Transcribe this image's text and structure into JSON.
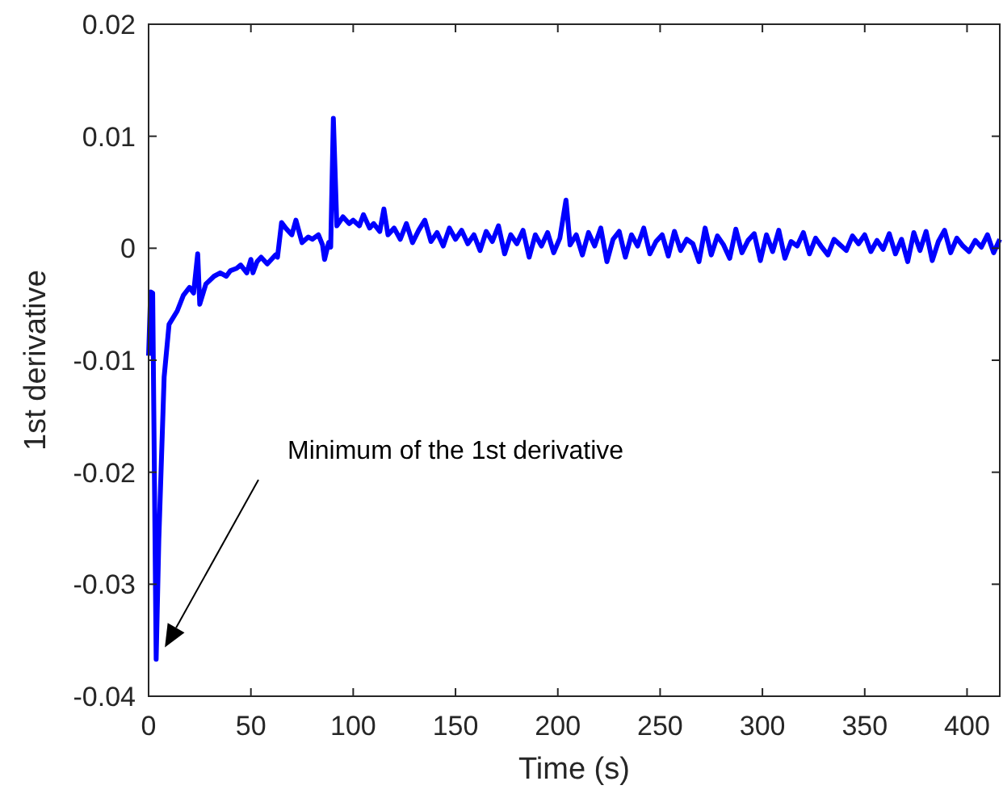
{
  "chart_data": {
    "type": "line",
    "xlabel": "Time (s)",
    "ylabel": "1st derivative",
    "xlim": [
      0,
      416
    ],
    "ylim": [
      -0.04,
      0.02
    ],
    "xticks": [
      0,
      50,
      100,
      150,
      200,
      250,
      300,
      350,
      400
    ],
    "yticks": [
      -0.04,
      -0.03,
      -0.02,
      -0.01,
      0,
      0.01,
      0.02
    ],
    "grid": false,
    "line_style": "solid",
    "annotations": [
      "Minimum of the 1st derivative"
    ],
    "series": [
      {
        "color": "#0000ff",
        "x": [
          0,
          1,
          2,
          3.7,
          5,
          7.6,
          10,
          14,
          17,
          20,
          22,
          24,
          25,
          28,
          32,
          35,
          38,
          40,
          43,
          45,
          48,
          50,
          51,
          53,
          55,
          58,
          60,
          62,
          63,
          65,
          67,
          70,
          72,
          75,
          78,
          80,
          83,
          85,
          86,
          88,
          89,
          90.3,
          92,
          95,
          98,
          100,
          103,
          105,
          108,
          110,
          113,
          115,
          117,
          120,
          123,
          126,
          129,
          132,
          135,
          138,
          141,
          144,
          147,
          150,
          153,
          156,
          159,
          162,
          165,
          168,
          171,
          174,
          177,
          180,
          183,
          186,
          189,
          192,
          195,
          198,
          201,
          204,
          206,
          209,
          212,
          215,
          218,
          221,
          224,
          227,
          230,
          233,
          236,
          239,
          242,
          245,
          248,
          251,
          254,
          257,
          260,
          263,
          266,
          269,
          272,
          275,
          278,
          281,
          284,
          287,
          290,
          293,
          296,
          299,
          302,
          305,
          308,
          311,
          314,
          317,
          320,
          323,
          326,
          329,
          332,
          335,
          338,
          341,
          344,
          347,
          350,
          353,
          356,
          359,
          362,
          365,
          368,
          371,
          374,
          377,
          380,
          383,
          386,
          389,
          392,
          395,
          398,
          401,
          404,
          407,
          410,
          413,
          416
        ],
        "values": [
          -0.0096,
          -0.0039,
          -0.004,
          -0.0367,
          -0.026,
          -0.0115,
          -0.0068,
          -0.0056,
          -0.0042,
          -0.0035,
          -0.004,
          -0.0005,
          -0.005,
          -0.0032,
          -0.0025,
          -0.0022,
          -0.0025,
          -0.002,
          -0.0018,
          -0.0015,
          -0.0022,
          -0.001,
          -0.0022,
          -0.0012,
          -0.0008,
          -0.0014,
          -0.001,
          -0.0006,
          -0.0008,
          0.0023,
          0.0018,
          0.0012,
          0.0025,
          0.0005,
          0.001,
          0.0008,
          0.0012,
          0.0003,
          -0.001,
          0.0005,
          0.0001,
          0.0116,
          0.002,
          0.0028,
          0.0022,
          0.0025,
          0.002,
          0.003,
          0.0018,
          0.0022,
          0.0015,
          0.0035,
          0.0012,
          0.0018,
          0.0008,
          0.0022,
          0.0005,
          0.0016,
          0.0025,
          0.0006,
          0.0014,
          0.0002,
          0.0018,
          0.0008,
          0.0016,
          0.0004,
          0.0012,
          -0.0002,
          0.0015,
          0.0006,
          0.002,
          -0.0005,
          0.0012,
          0.0004,
          0.0016,
          -0.0008,
          0.0012,
          0.0002,
          0.0014,
          -0.0004,
          0.0009,
          0.0043,
          0.0003,
          0.0012,
          -0.0006,
          0.0014,
          0.0002,
          0.0018,
          -0.0012,
          0.0008,
          0.0015,
          -0.0008,
          0.0012,
          0.0002,
          0.0018,
          -0.0005,
          0.0006,
          0.0012,
          -0.0007,
          0.0015,
          -0.0002,
          0.0008,
          0.0004,
          -0.0012,
          0.0018,
          -0.0006,
          0.0011,
          0.0003,
          -0.0009,
          0.0017,
          -0.0004,
          0.0007,
          0.0013,
          -0.0011,
          0.0012,
          -0.0003,
          0.0016,
          -0.0009,
          0.0006,
          0.0002,
          0.0014,
          -0.0005,
          0.0009,
          0.0001,
          -0.0006,
          0.0008,
          0.0003,
          -0.0002,
          0.0011,
          0.0004,
          0.0012,
          -0.0003,
          0.0007,
          -0.0001,
          0.0013,
          -0.0005,
          0.0008,
          -0.0012,
          0.0014,
          -0.0002,
          0.0015,
          -0.0011,
          0.0006,
          0.0016,
          -0.0004,
          0.0009,
          0.0002,
          -0.0003,
          0.0007,
          0.0001,
          0.0012,
          -0.0004,
          0.0008
        ]
      }
    ]
  }
}
